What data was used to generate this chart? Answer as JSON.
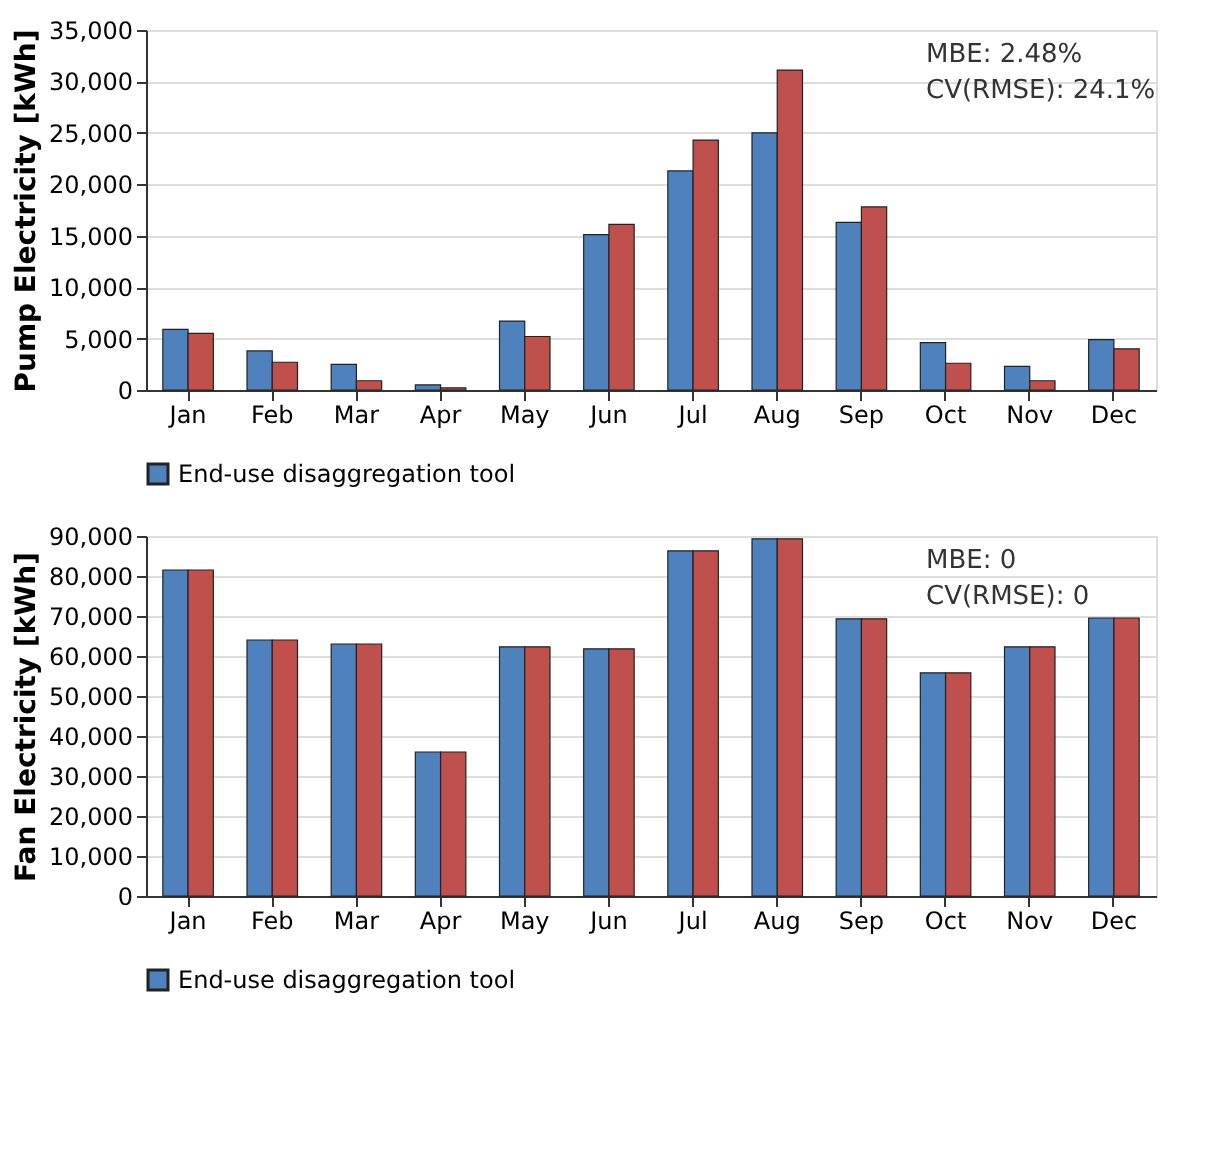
{
  "chart_data": [
    {
      "type": "bar",
      "ylabel": "Pump Electricity [kWh]",
      "categories": [
        "Jan",
        "Feb",
        "Mar",
        "Apr",
        "May",
        "Jun",
        "Jul",
        "Aug",
        "Sep",
        "Oct",
        "Nov",
        "Dec"
      ],
      "series": [
        {
          "name": "End-use disaggregation tool",
          "color": "#4f81bd",
          "values": [
            5900,
            3800,
            2500,
            500,
            6700,
            15100,
            21300,
            25000,
            16300,
            4600,
            2300,
            4900
          ]
        },
        {
          "color": "#c0504d",
          "values": [
            5500,
            2700,
            900,
            200,
            5200,
            16100,
            24300,
            31100,
            17800,
            2600,
            900,
            4000
          ]
        }
      ],
      "ylim": [
        0,
        35000
      ],
      "yticks": [
        0,
        {
          "value": 5000,
          "label": "5,000"
        },
        {
          "value": 10000,
          "label": "10,000"
        },
        {
          "value": 15000,
          "label": "15,000"
        },
        {
          "value": 20000,
          "label": "20,000"
        },
        {
          "value": 25000,
          "label": "25,000"
        },
        {
          "value": 30000,
          "label": "30,000"
        },
        {
          "value": 35000,
          "label": "35,000"
        }
      ],
      "grid": "y",
      "legend": "bottom",
      "annotations": [
        "MBE: 2.48%",
        "CV(RMSE): 24.1%"
      ]
    },
    {
      "type": "bar",
      "ylabel": "Fan Electricity [kWh]",
      "categories": [
        "Jan",
        "Feb",
        "Mar",
        "Apr",
        "May",
        "Jun",
        "Jul",
        "Aug",
        "Sep",
        "Oct",
        "Nov",
        "Dec"
      ],
      "series": [
        {
          "name": "End-use disaggregation tool",
          "color": "#4f81bd",
          "values": [
            81500,
            64000,
            63000,
            36000,
            62300,
            61800,
            86300,
            89300,
            69300,
            55800,
            62300,
            69500
          ]
        },
        {
          "color": "#c0504d",
          "values": [
            81500,
            64000,
            63000,
            36000,
            62300,
            61800,
            86300,
            89300,
            69300,
            55800,
            62300,
            69500
          ]
        }
      ],
      "ylim": [
        0,
        90000
      ],
      "yticks": [
        0,
        {
          "value": 10000,
          "label": "10,000"
        },
        {
          "value": 20000,
          "label": "20,000"
        },
        {
          "value": 30000,
          "label": "30,000"
        },
        {
          "value": 40000,
          "label": "40,000"
        },
        {
          "value": 50000,
          "label": "50,000"
        },
        {
          "value": 60000,
          "label": "60,000"
        },
        {
          "value": 70000,
          "label": "70,000"
        },
        {
          "value": 80000,
          "label": "80,000"
        },
        {
          "value": 90000,
          "label": "90,000"
        }
      ],
      "grid": "y",
      "legend": "bottom",
      "annotations": [
        "MBE: 0",
        "CV(RMSE): 0"
      ]
    }
  ]
}
